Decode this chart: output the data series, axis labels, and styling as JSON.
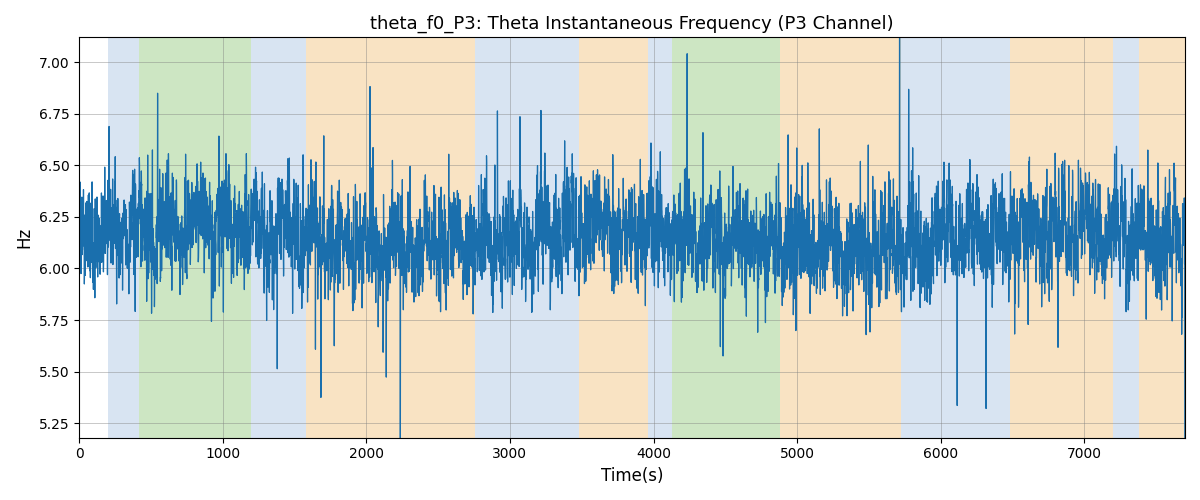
{
  "title": "theta_f0_P3: Theta Instantaneous Frequency (P3 Channel)",
  "xlabel": "Time(s)",
  "ylabel": "Hz",
  "ylim": [
    5.18,
    7.12
  ],
  "xlim": [
    0,
    7700
  ],
  "yticks": [
    5.25,
    5.5,
    5.75,
    6.0,
    6.25,
    6.5,
    6.75,
    7.0
  ],
  "background_color": "#ffffff",
  "line_color": "#1a6fad",
  "line_width": 0.9,
  "seed": 42,
  "n_points": 7700,
  "colored_regions": [
    {
      "start": 200,
      "end": 420,
      "color": "#b8cfe8",
      "alpha": 0.55
    },
    {
      "start": 420,
      "end": 1200,
      "color": "#90c97a",
      "alpha": 0.45
    },
    {
      "start": 1200,
      "end": 1580,
      "color": "#b8cfe8",
      "alpha": 0.55
    },
    {
      "start": 1580,
      "end": 2760,
      "color": "#f5c888",
      "alpha": 0.5
    },
    {
      "start": 2760,
      "end": 3480,
      "color": "#b8cfe8",
      "alpha": 0.55
    },
    {
      "start": 3480,
      "end": 3960,
      "color": "#f5c888",
      "alpha": 0.5
    },
    {
      "start": 3960,
      "end": 4130,
      "color": "#b8cfe8",
      "alpha": 0.55
    },
    {
      "start": 4130,
      "end": 4880,
      "color": "#90c97a",
      "alpha": 0.45
    },
    {
      "start": 4880,
      "end": 5720,
      "color": "#f5c888",
      "alpha": 0.5
    },
    {
      "start": 5720,
      "end": 6480,
      "color": "#b8cfe8",
      "alpha": 0.55
    },
    {
      "start": 6480,
      "end": 7200,
      "color": "#f5c888",
      "alpha": 0.5
    },
    {
      "start": 7200,
      "end": 7380,
      "color": "#b8cfe8",
      "alpha": 0.55
    },
    {
      "start": 7380,
      "end": 7700,
      "color": "#f5c888",
      "alpha": 0.5
    }
  ],
  "signal": {
    "base": 6.15,
    "noise_std": 0.18,
    "spike_prob": 0.025,
    "spike_scale": 0.38,
    "fast_osc_amp": 0.04,
    "fast_osc_period": 60,
    "med_osc_amp": 0.06,
    "med_osc_period": 200,
    "slow_drift_amp": 0.05,
    "slow_drift_period": 3000
  }
}
